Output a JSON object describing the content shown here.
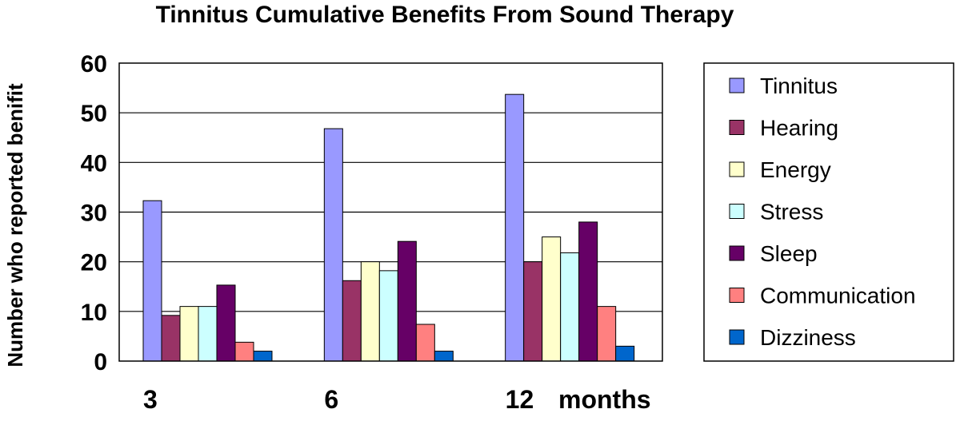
{
  "chart_data": {
    "type": "bar",
    "title": "Tinnitus Cumulative Benefits From Sound Therapy",
    "xlabel": "months",
    "ylabel": "Number who reported benifit",
    "categories": [
      "3",
      "6",
      "12"
    ],
    "ylim": [
      0,
      60
    ],
    "yticks": [
      0,
      10,
      20,
      30,
      40,
      50,
      60
    ],
    "grid": true,
    "legend_position": "right",
    "series": [
      {
        "name": "Tinnitus",
        "color": "#9999ff",
        "values": [
          32.3,
          46.8,
          53.7
        ]
      },
      {
        "name": "Hearing",
        "color": "#993366",
        "values": [
          9.2,
          16.2,
          20
        ]
      },
      {
        "name": "Energy",
        "color": "#ffffcc",
        "values": [
          11,
          20,
          25
        ]
      },
      {
        "name": "Stress",
        "color": "#ccffff",
        "values": [
          11,
          18.2,
          21.8
        ]
      },
      {
        "name": "Sleep",
        "color": "#660066",
        "values": [
          15.3,
          24.1,
          28
        ]
      },
      {
        "name": "Communication",
        "color": "#ff8080",
        "values": [
          3.8,
          7.4,
          11
        ]
      },
      {
        "name": "Dizziness",
        "color": "#0066cc",
        "values": [
          2,
          2,
          3
        ]
      }
    ]
  }
}
